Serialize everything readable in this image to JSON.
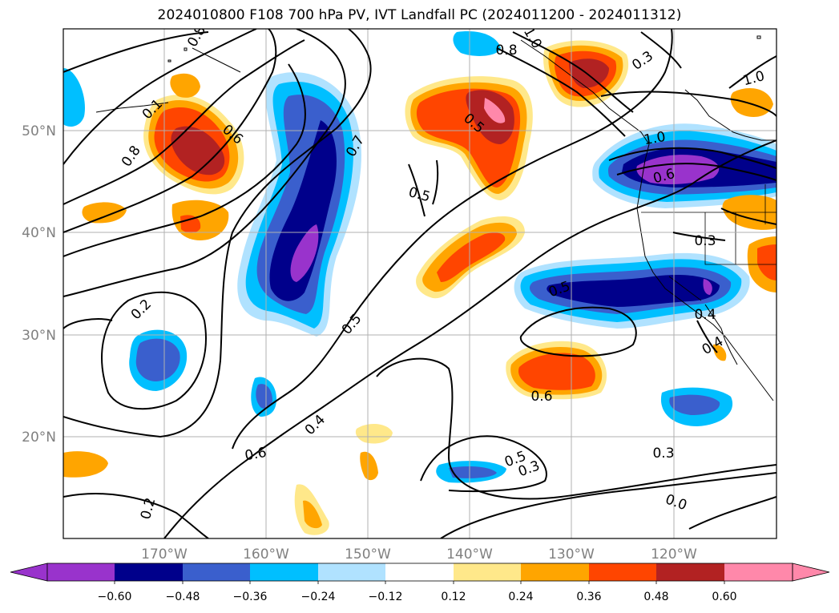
{
  "title": "2024010800 F108 700 hPa PV, IVT Landfall PC (2024011200 - 2024011312)",
  "lat_labels": [
    "50°N",
    "40°N",
    "30°N",
    "20°N"
  ],
  "lon_labels": [
    "170°W",
    "160°W",
    "150°W",
    "140°W",
    "130°W",
    "120°W"
  ],
  "colorbar": {
    "ticks": [
      "−0.60",
      "−0.48",
      "−0.36",
      "−0.24",
      "−0.12",
      "0.12",
      "0.24",
      "0.36",
      "0.48",
      "0.60"
    ],
    "colors": [
      "#9933cc",
      "#00008b",
      "#3a5fcd",
      "#00bfff",
      "#b0e2ff",
      "#ffffff",
      "#ffe88a",
      "#ffa500",
      "#ff4500",
      "#b22222",
      "#ff88aa"
    ]
  },
  "contour_labels": [
    "0.8",
    "1.0",
    "0.8",
    "1.0",
    "0.1",
    "0.6",
    "0.8",
    "0.7",
    "0.5",
    "0.5",
    "1.0",
    "0.6",
    "0.3",
    "0.3",
    "0.5",
    "0.4",
    "0.2",
    "0.5",
    "0.4",
    "0.6",
    "0.4",
    "0.6",
    "0.5",
    "0.3",
    "0.3",
    "0.2",
    "0.0"
  ]
}
